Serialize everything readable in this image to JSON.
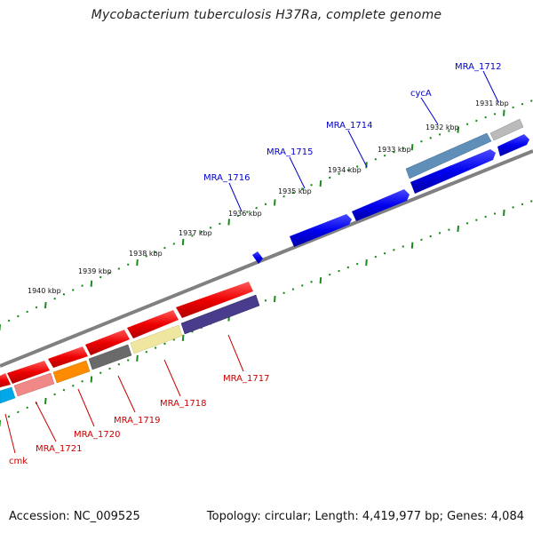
{
  "title": "Mycobacterium tuberculosis H37Ra, complete genome",
  "footer": {
    "accession": "Accession: NC_009525",
    "stats": "Topology: circular; Length: 4,419,977 bp; Genes: 4,084"
  },
  "scale": {
    "unit": "kbp",
    "ticks": [
      "1931 kbp",
      "1932 kbp",
      "1933 kbp",
      "1934 kbp",
      "1935 kbp",
      "1936 kbp",
      "1937 kbp",
      "1938 kbp",
      "1939 kbp",
      "1940 kbp"
    ]
  },
  "colors": {
    "forward_gene": "#0000ee",
    "reverse_gene": "#ee0000",
    "forward_label": "#0000cc",
    "reverse_label": "#cc0000",
    "backbone": "#808080",
    "tick": "#1a8a1a"
  },
  "genes": {
    "forward_labels": [
      "MRA_1712",
      "cycA",
      "MRA_1714",
      "MRA_1715",
      "MRA_1716"
    ],
    "reverse_labels": [
      "MRA_1717",
      "MRA_1718",
      "MRA_1719",
      "MRA_1720",
      "MRA_1721",
      "cmk"
    ]
  }
}
